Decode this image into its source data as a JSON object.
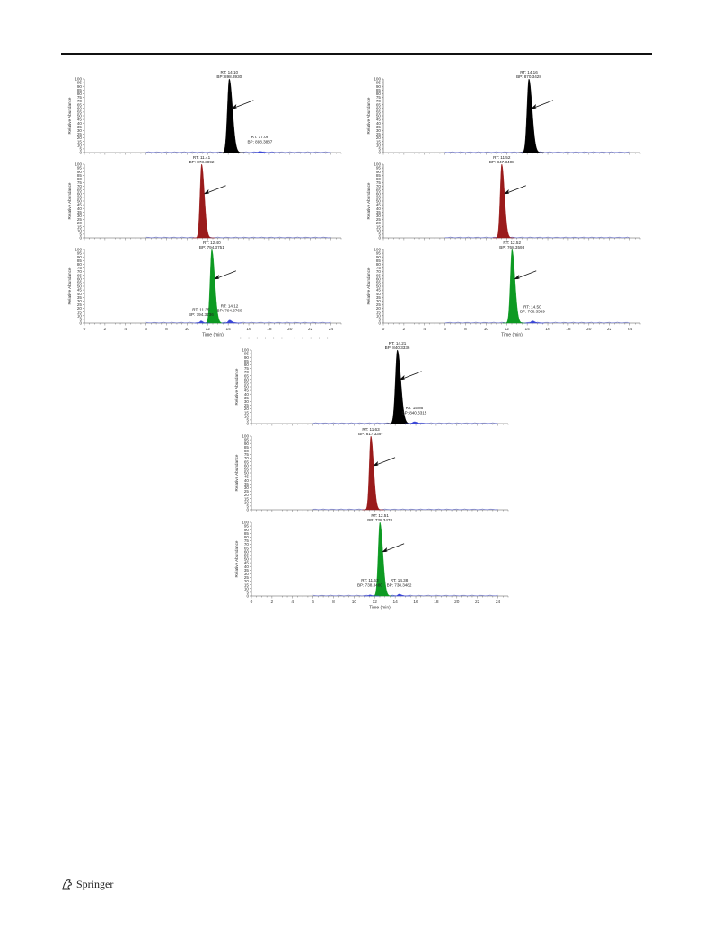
{
  "page": {
    "footer_text": "Springer",
    "colors": {
      "black": "#000000",
      "red": "#9a1b1b",
      "green": "#0d9a22",
      "noise": "#3a46d6"
    }
  },
  "axis_common": {
    "ylabel": "Relative Abundance",
    "xlabel": "Time (min)",
    "xticks": [
      0,
      2,
      4,
      6,
      8,
      10,
      12,
      14,
      16,
      18,
      20,
      22,
      24
    ],
    "yticks": [
      0,
      5,
      10,
      15,
      20,
      25,
      30,
      35,
      40,
      45,
      50,
      55,
      60,
      65,
      70,
      75,
      80,
      85,
      90,
      95,
      100
    ],
    "xlim": [
      0,
      25
    ],
    "ylim": [
      0,
      100
    ]
  },
  "chart_data": [
    {
      "type": "area",
      "panel": "A-top",
      "color": "#000000",
      "peaks": [
        {
          "rt": 14.1,
          "height": 100,
          "width": 0.33
        },
        {
          "rt": 17.08,
          "height": 1.5,
          "width": 0.3
        }
      ],
      "annotations": [
        {
          "x": 14.1,
          "y": 100,
          "lines": [
            "RT: 14.10",
            "BP: 898.3930"
          ]
        },
        {
          "x": 17.08,
          "y": 12,
          "lines": [
            "RT: 17.08",
            "BP: 898.3887"
          ]
        }
      ],
      "arrow_at": 14.1
    },
    {
      "type": "area",
      "panel": "A-mid",
      "color": "#9a1b1b",
      "peaks": [
        {
          "rt": 11.41,
          "height": 100,
          "width": 0.28
        }
      ],
      "annotations": [
        {
          "x": 11.41,
          "y": 100,
          "lines": [
            "RT: 11.41",
            "BP: 873.3892"
          ]
        }
      ],
      "arrow_at": 11.41
    },
    {
      "type": "area",
      "panel": "A-bot",
      "color": "#0d9a22",
      "peaks": [
        {
          "rt": 12.4,
          "height": 100,
          "width": 0.3
        },
        {
          "rt": 11.35,
          "height": 3,
          "width": 0.2
        },
        {
          "rt": 14.12,
          "height": 4,
          "width": 0.25
        }
      ],
      "annotations": [
        {
          "x": 12.4,
          "y": 100,
          "lines": [
            "RT: 12.40",
            "BP: 794.3751"
          ]
        },
        {
          "x": 11.35,
          "y": 9,
          "lines": [
            "RT: 11.35",
            "BP: 794.3736"
          ]
        },
        {
          "x": 14.12,
          "y": 14,
          "lines": [
            "RT: 14.12",
            "BP: 794.3760"
          ]
        }
      ],
      "arrow_at": 12.4
    },
    {
      "type": "area",
      "panel": "B-top",
      "color": "#000000",
      "peaks": [
        {
          "rt": 14.16,
          "height": 100,
          "width": 0.33
        }
      ],
      "annotations": [
        {
          "x": 14.16,
          "y": 100,
          "lines": [
            "RT: 14.16",
            "BP: 870.3428"
          ]
        }
      ],
      "arrow_at": 14.16
    },
    {
      "type": "area",
      "panel": "B-mid",
      "color": "#9a1b1b",
      "peaks": [
        {
          "rt": 11.52,
          "height": 100,
          "width": 0.28
        }
      ],
      "annotations": [
        {
          "x": 11.52,
          "y": 100,
          "lines": [
            "RT: 11.52",
            "BP: 847.3408"
          ]
        }
      ],
      "arrow_at": 11.52
    },
    {
      "type": "area",
      "panel": "B-bot",
      "color": "#0d9a22",
      "peaks": [
        {
          "rt": 12.52,
          "height": 100,
          "width": 0.3
        },
        {
          "rt": 14.5,
          "height": 3,
          "width": 0.25
        }
      ],
      "annotations": [
        {
          "x": 12.52,
          "y": 100,
          "lines": [
            "RT: 12.52",
            "BP: 768.3593"
          ]
        },
        {
          "x": 14.5,
          "y": 13,
          "lines": [
            "RT: 14.50",
            "BP: 768.3569"
          ]
        }
      ],
      "arrow_at": 12.52
    },
    {
      "type": "area",
      "panel": "C-top",
      "color": "#000000",
      "peaks": [
        {
          "rt": 14.21,
          "height": 100,
          "width": 0.35
        },
        {
          "rt": 15.86,
          "height": 2.5,
          "width": 0.3
        }
      ],
      "annotations": [
        {
          "x": 14.21,
          "y": 100,
          "lines": [
            "RT: 14.21",
            "BP: 840.3336"
          ]
        },
        {
          "x": 15.86,
          "y": 12,
          "lines": [
            "RT: 15.86",
            "BP: 840.3315"
          ]
        }
      ],
      "arrow_at": 14.21
    },
    {
      "type": "area",
      "panel": "C-mid",
      "color": "#9a1b1b",
      "peaks": [
        {
          "rt": 11.63,
          "height": 100,
          "width": 0.28
        }
      ],
      "annotations": [
        {
          "x": 11.63,
          "y": 100,
          "lines": [
            "RT: 11.63",
            "BP: 817.3397"
          ]
        }
      ],
      "arrow_at": 11.63
    },
    {
      "type": "area",
      "panel": "C-bot",
      "color": "#0d9a22",
      "peaks": [
        {
          "rt": 12.51,
          "height": 100,
          "width": 0.3
        },
        {
          "rt": 11.53,
          "height": 1.5,
          "width": 0.2
        },
        {
          "rt": 14.38,
          "height": 2.5,
          "width": 0.25
        }
      ],
      "annotations": [
        {
          "x": 12.51,
          "y": 100,
          "lines": [
            "RT: 12.51",
            "BP: 738.3478"
          ]
        },
        {
          "x": 11.53,
          "y": 12,
          "lines": [
            "RT: 11.53",
            "BP: 738.3480"
          ]
        },
        {
          "x": 14.38,
          "y": 12,
          "lines": [
            "RT: 14.38",
            "BP: 738.3482"
          ]
        }
      ],
      "arrow_at": 12.51
    }
  ]
}
